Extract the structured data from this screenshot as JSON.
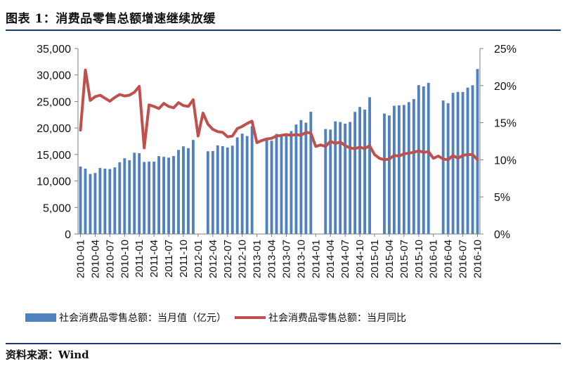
{
  "header": {
    "title": "图表 1：消费品零售总额增速继续放缓"
  },
  "source": "资料来源：Wind",
  "chart_data": {
    "type": "bar+line",
    "title": "图表 1：消费品零售总额增速继续放缓",
    "x_tick_labels": [
      "2010-01",
      "2010-04",
      "2010-07",
      "2010-10",
      "2011-01",
      "2011-04",
      "2011-07",
      "2011-10",
      "2012-01",
      "2012-04",
      "2012-07",
      "2012-10",
      "2013-01",
      "2013-04",
      "2013-07",
      "2013-10",
      "2014-01",
      "2014-04",
      "2014-07",
      "2014-10",
      "2015-01",
      "2015-04",
      "2015-07",
      "2015-10",
      "2016-01",
      "2016-04",
      "2016-07",
      "2016-10"
    ],
    "left_axis": {
      "ylim": [
        0,
        35000
      ],
      "ticks": [
        "0",
        "5,000",
        "10,000",
        "15,000",
        "20,000",
        "25,000",
        "30,000",
        "35,000"
      ]
    },
    "right_axis": {
      "ylim": [
        0,
        25
      ],
      "ticks": [
        "0%",
        "5%",
        "10%",
        "15%",
        "20%",
        "25%"
      ]
    },
    "series": [
      {
        "name": "社会消费品零售总额：当月值（亿元）",
        "type": "bar",
        "color": "#4f81bd",
        "values": [
          12718,
          12334,
          11322,
          11510,
          12455,
          12329,
          12252,
          12569,
          13537,
          14285,
          13910,
          15330,
          15249,
          13588,
          13649,
          13649,
          14697,
          14565,
          14408,
          14705,
          15865,
          16546,
          16190,
          17739,
          null,
          null,
          15603,
          15650,
          16715,
          16583,
          16315,
          16659,
          18227,
          18934,
          18477,
          20335,
          null,
          null,
          18164,
          17600,
          18886,
          18826,
          18827,
          19425,
          20653,
          21491,
          21012,
          23060,
          null,
          null,
          19801,
          19701,
          21250,
          21130,
          20815,
          21134,
          23032,
          23964,
          23476,
          25801,
          null,
          null,
          22716,
          22362,
          24195,
          24260,
          24340,
          24876,
          25449,
          28087,
          27842,
          28525,
          null,
          null,
          25179,
          24672,
          26628,
          26803,
          26788,
          27617,
          28065,
          31119
        ]
      },
      {
        "name": "社会消费品零售总额：当月同比",
        "type": "line",
        "color": "#c0504d",
        "values": [
          14.0,
          22.1,
          18.0,
          18.5,
          18.7,
          18.3,
          17.9,
          18.4,
          18.8,
          18.6,
          18.7,
          19.1,
          19.9,
          11.6,
          17.4,
          17.2,
          16.9,
          17.6,
          17.2,
          17.0,
          17.7,
          17.3,
          17.2,
          18.1,
          13.2,
          16.3,
          14.8,
          14.1,
          13.8,
          13.7,
          13.1,
          13.2,
          14.2,
          14.5,
          14.9,
          15.2,
          12.3,
          12.6,
          12.8,
          12.9,
          13.2,
          13.3,
          13.4,
          13.3,
          13.4,
          13.3,
          13.7,
          13.6,
          11.8,
          12.0,
          11.8,
          12.5,
          12.2,
          12.4,
          11.9,
          11.6,
          11.5,
          11.7,
          11.5,
          11.9,
          10.7,
          10.2,
          10.0,
          10.1,
          10.6,
          10.5,
          10.8,
          10.9,
          11.0,
          11.2,
          11.0,
          11.1,
          10.2,
          10.5,
          10.1,
          10.0,
          10.6,
          10.2,
          10.6,
          10.7,
          10.7,
          10.0
        ]
      }
    ],
    "legend": [
      "社会消费品零售总额：当月值（亿元）",
      "社会消费品零售总额：当月同比"
    ],
    "legend_position": "bottom"
  }
}
